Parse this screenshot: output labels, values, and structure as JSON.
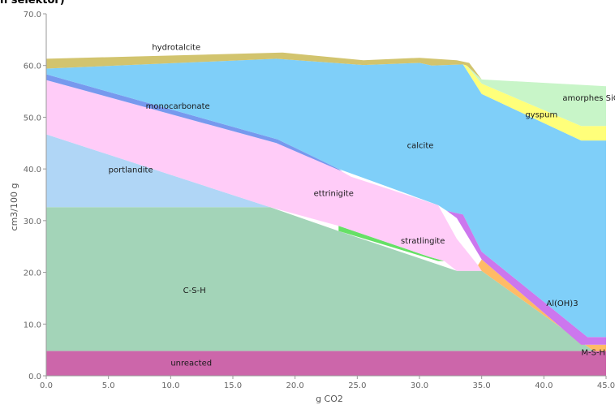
{
  "header_fragment": "n selektor)",
  "chart_data": {
    "type": "area",
    "title": "",
    "xlabel": "g CO2",
    "ylabel": "cm3/100 g",
    "xlim": [
      0,
      45
    ],
    "ylim": [
      0,
      70
    ],
    "x_ticks": [
      "0.0",
      "5.0",
      "10.0",
      "15.0",
      "20.0",
      "25.0",
      "30.0",
      "35.0",
      "40.0",
      "45.0"
    ],
    "y_ticks": [
      "0.0",
      "10.0",
      "20.0",
      "30.0",
      "40.0",
      "50.0",
      "60.0",
      "70.0"
    ],
    "grid": false,
    "legend": "none",
    "labels": [
      {
        "text": "hydrotalcite",
        "x": 8.5,
        "y": 63.0
      },
      {
        "text": "monocarbonate",
        "x": 8.0,
        "y": 51.6
      },
      {
        "text": "portlandite",
        "x": 5.0,
        "y": 39.3
      },
      {
        "text": "calcite",
        "x": 29.0,
        "y": 44.0
      },
      {
        "text": "ettrinigite",
        "x": 21.5,
        "y": 34.8
      },
      {
        "text": "amorphes SiO2",
        "x": 41.5,
        "y": 53.2
      },
      {
        "text": "gyspum",
        "x": 38.5,
        "y": 50.0
      },
      {
        "text": "stratlingite",
        "x": 28.5,
        "y": 25.6
      },
      {
        "text": "C-S-H",
        "x": 11.0,
        "y": 16.0
      },
      {
        "text": "Al(OH)3",
        "x": 40.2,
        "y": 13.5
      },
      {
        "text": "M-S-H",
        "x": 43.0,
        "y": 4.0
      },
      {
        "text": "unreacted",
        "x": 10.0,
        "y": 2.0
      }
    ],
    "series": [
      {
        "name": "unreacted",
        "color": "#cc66aa",
        "points": [
          [
            0,
            0
          ],
          [
            45,
            0
          ],
          [
            45,
            4.8
          ],
          [
            0,
            4.8
          ]
        ]
      },
      {
        "name": "C-S-H",
        "color": "#a3d4b8",
        "points": [
          [
            0,
            4.8
          ],
          [
            45,
            4.8
          ],
          [
            44,
            4.8
          ],
          [
            35,
            20.3
          ],
          [
            33,
            20.3
          ],
          [
            23.5,
            28.0
          ],
          [
            18,
            32.6
          ],
          [
            0,
            32.6
          ]
        ]
      },
      {
        "name": "portlandite",
        "color": "#b0d6f6",
        "points": [
          [
            0,
            32.6
          ],
          [
            18,
            32.6
          ],
          [
            0,
            46.7
          ]
        ]
      },
      {
        "name": "stratlingite",
        "color": "#66e066",
        "points": [
          [
            23.5,
            28.0
          ],
          [
            31.5,
            22.2
          ],
          [
            32,
            22.2
          ],
          [
            30.8,
            23.0
          ],
          [
            23.5,
            29.0
          ]
        ]
      },
      {
        "name": "ettrinigite",
        "color": "#ffccf8",
        "points": [
          [
            0,
            46.7
          ],
          [
            18,
            32.6
          ],
          [
            23.5,
            29.0
          ],
          [
            30.8,
            23.0
          ],
          [
            32,
            22.2
          ],
          [
            33,
            20.3
          ],
          [
            35,
            20.3
          ],
          [
            34.7,
            21.4
          ],
          [
            33,
            26.5
          ],
          [
            31.5,
            33.0
          ],
          [
            24.5,
            38.5
          ],
          [
            20.5,
            44.0
          ],
          [
            18.5,
            45.0
          ],
          [
            0,
            57.2
          ]
        ]
      },
      {
        "name": "monocarbonate",
        "color": "#7799ee",
        "points": [
          [
            0,
            57.2
          ],
          [
            18.5,
            45.0
          ],
          [
            23.8,
            39.5
          ],
          [
            23.5,
            40.0
          ],
          [
            18.6,
            45.7
          ],
          [
            0,
            58.3
          ]
        ]
      },
      {
        "name": "Al(OH)3",
        "color": "#ffbb66",
        "points": [
          [
            34.7,
            21.4
          ],
          [
            35,
            20.3
          ],
          [
            44,
            4.8
          ],
          [
            45,
            4.8
          ],
          [
            45,
            6.0
          ],
          [
            43,
            6.0
          ],
          [
            35,
            22.5
          ]
        ]
      },
      {
        "name": "M-S-H",
        "color": "#cc77ee",
        "points": [
          [
            35,
            22.5
          ],
          [
            43,
            6.0
          ],
          [
            45,
            6.0
          ],
          [
            45,
            7.5
          ],
          [
            43.5,
            7.5
          ],
          [
            35,
            24.0
          ],
          [
            33.5,
            31.2
          ],
          [
            32.2,
            31.9
          ],
          [
            33,
            30.5
          ]
        ]
      },
      {
        "name": "calcite",
        "color": "#7fcff9",
        "points": [
          [
            0,
            58.3
          ],
          [
            18.6,
            45.7
          ],
          [
            23.5,
            40.0
          ],
          [
            31.5,
            33.0
          ],
          [
            32.2,
            31.9
          ],
          [
            33.5,
            31.2
          ],
          [
            35,
            24.0
          ],
          [
            43.5,
            7.5
          ],
          [
            45,
            7.5
          ],
          [
            45,
            45.5
          ],
          [
            43,
            45.5
          ],
          [
            35,
            54.5
          ],
          [
            33.5,
            60.2
          ],
          [
            31,
            60.0
          ],
          [
            30,
            60.5
          ],
          [
            25.5,
            60.1
          ],
          [
            18.5,
            61.3
          ],
          [
            0,
            59.4
          ]
        ]
      },
      {
        "name": "gyspum",
        "color": "#ffff7a",
        "points": [
          [
            33.5,
            60.2
          ],
          [
            35,
            54.5
          ],
          [
            43,
            45.5
          ],
          [
            45,
            45.5
          ],
          [
            45,
            48.3
          ],
          [
            43,
            48.3
          ],
          [
            35,
            56.5
          ],
          [
            33.8,
            60.0
          ]
        ]
      },
      {
        "name": "amorphes SiO2",
        "color": "#c8f5c8",
        "points": [
          [
            33.8,
            60.0
          ],
          [
            35,
            56.5
          ],
          [
            43,
            48.3
          ],
          [
            45,
            48.3
          ],
          [
            45,
            56.0
          ],
          [
            35,
            57.3
          ]
        ]
      },
      {
        "name": "hydrotalcite",
        "color": "#d2c46e",
        "points": [
          [
            0,
            59.4
          ],
          [
            18.5,
            61.3
          ],
          [
            25.5,
            60.1
          ],
          [
            30,
            60.5
          ],
          [
            31,
            60.0
          ],
          [
            33.5,
            60.2
          ],
          [
            33.8,
            60.0
          ],
          [
            35,
            57.3
          ],
          [
            34,
            60.5
          ],
          [
            33,
            61.0
          ],
          [
            30,
            61.5
          ],
          [
            25.5,
            61.0
          ],
          [
            19,
            62.5
          ],
          [
            0,
            61.3
          ]
        ]
      }
    ]
  }
}
